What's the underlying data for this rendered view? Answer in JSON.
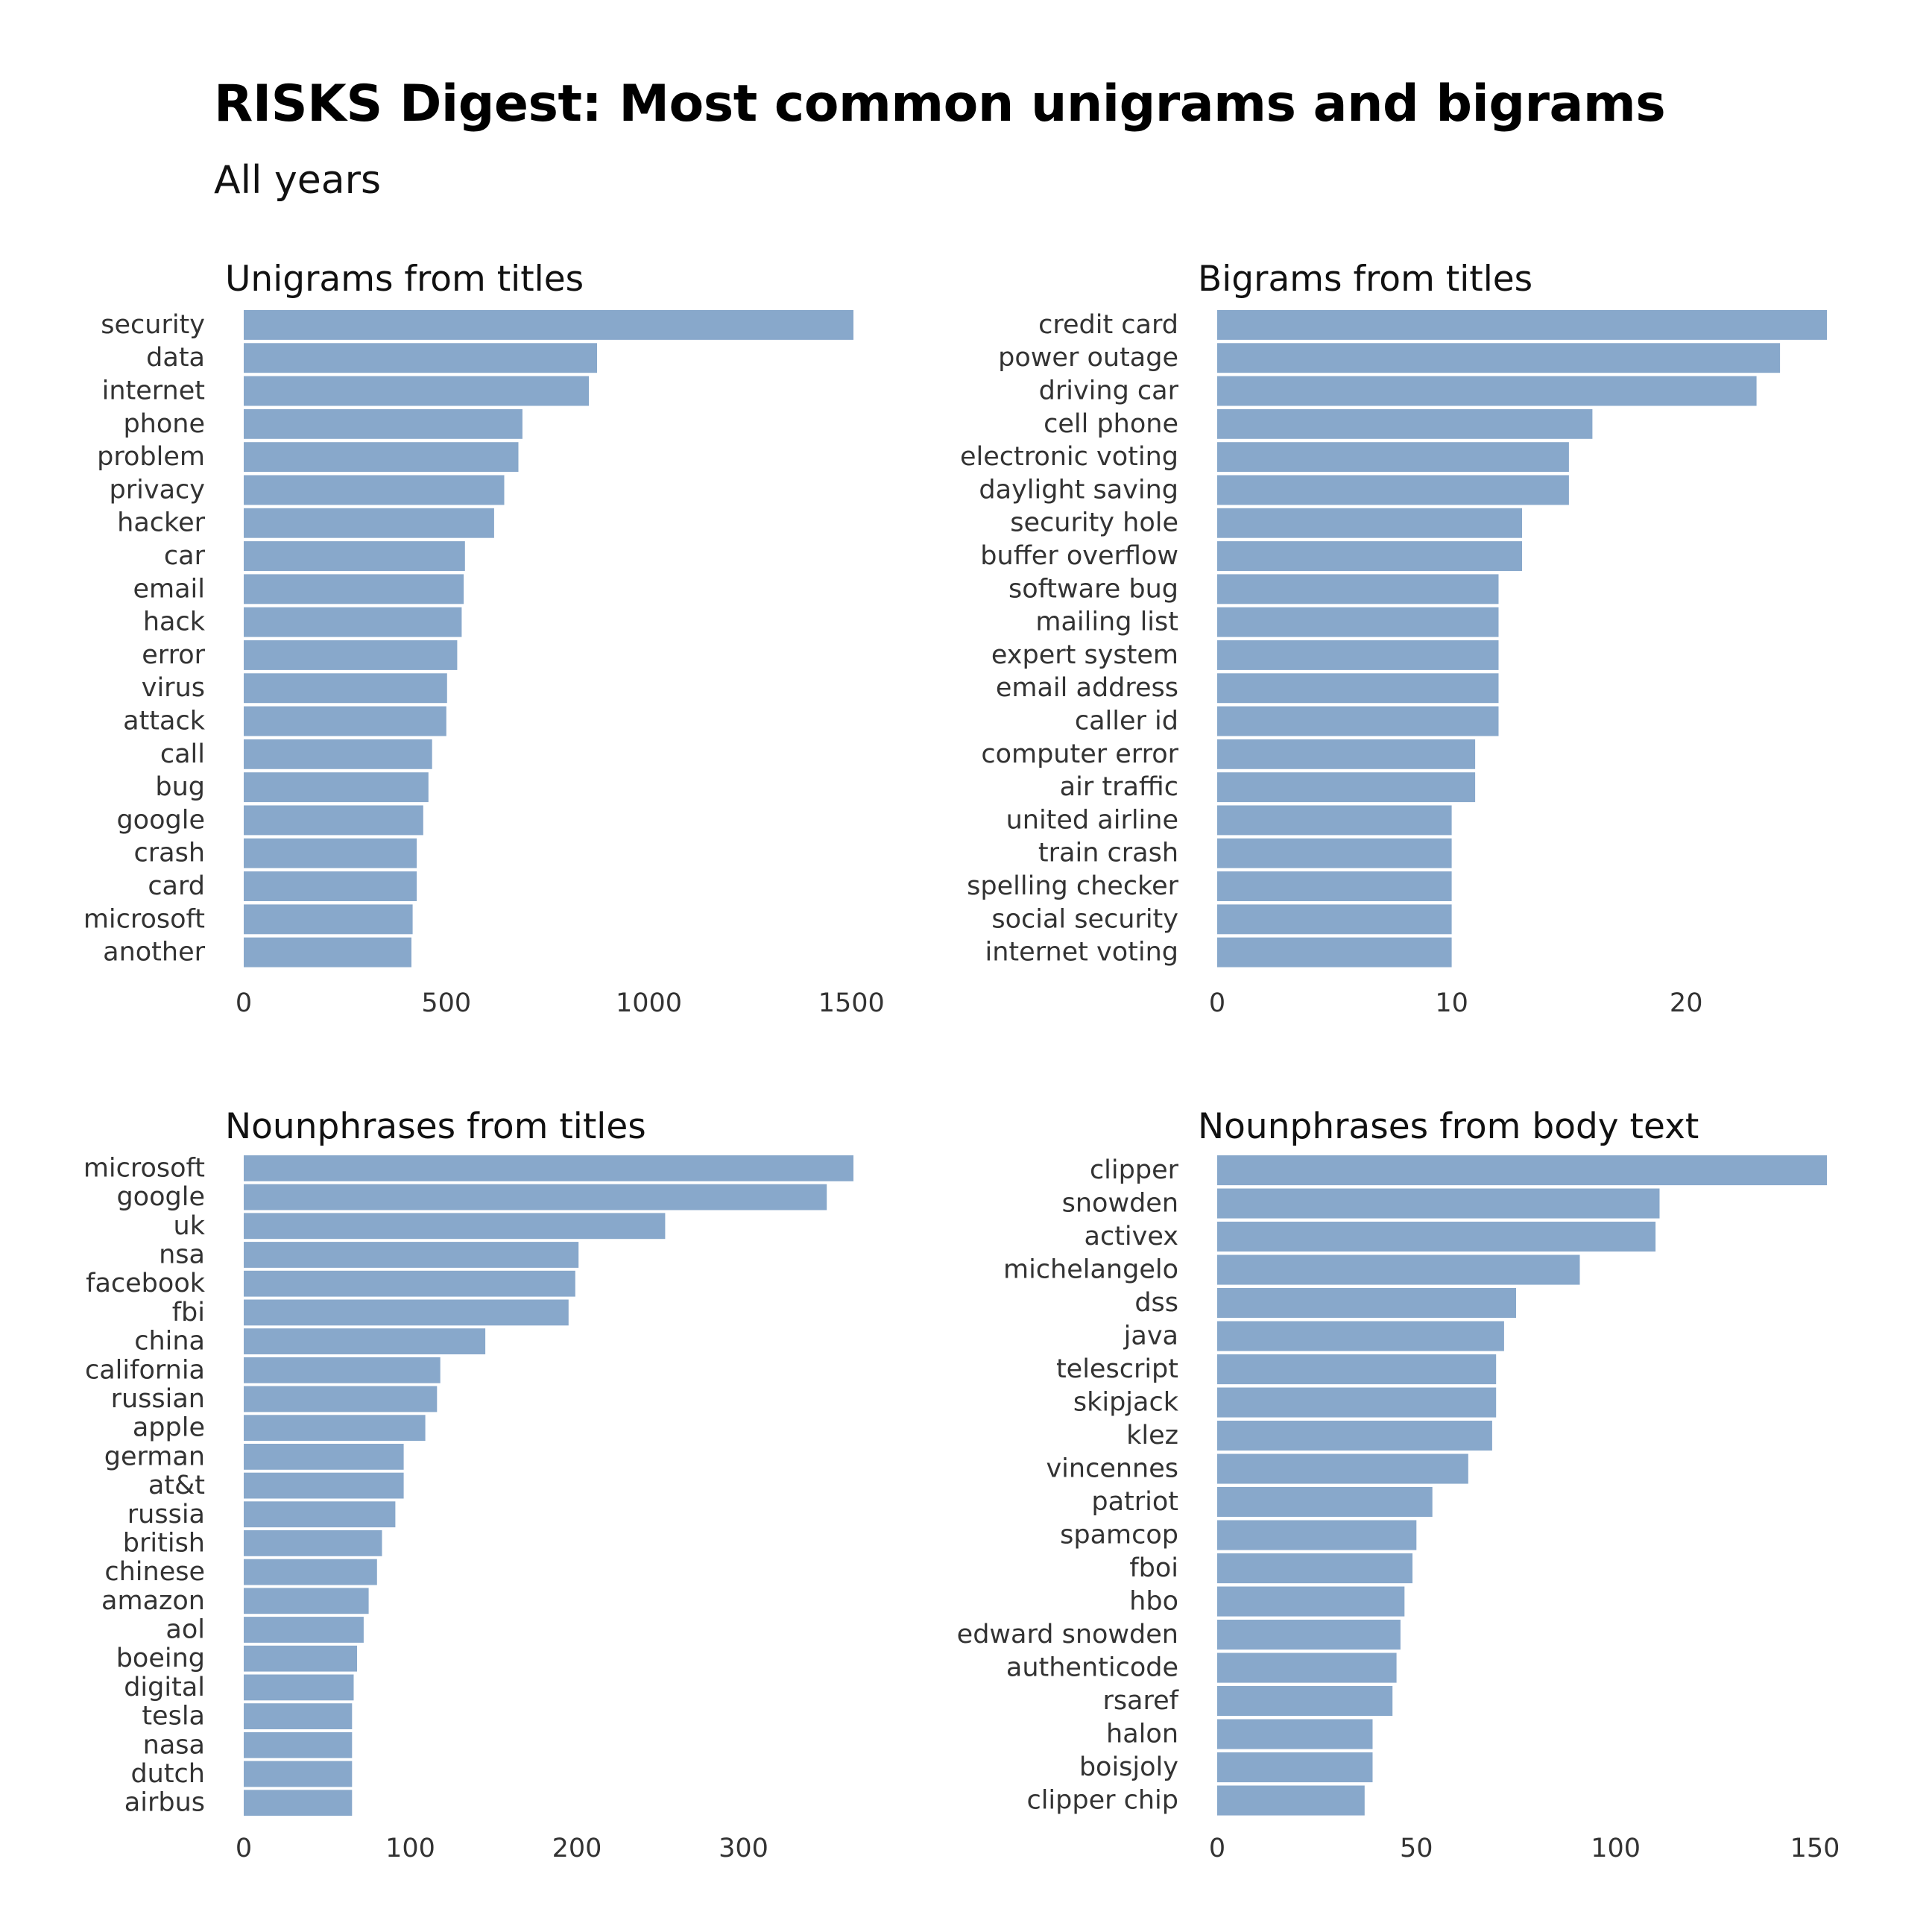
{
  "title": "RISKS Digest: Most common unigrams and bigrams",
  "subtitle": "All years",
  "colors": {
    "bar": "#88A8CB",
    "text": "#333333",
    "title": "#111111"
  },
  "chart_data": [
    {
      "type": "bar",
      "orientation": "horizontal",
      "title": "Unigrams from titles",
      "categories": [
        "security",
        "data",
        "internet",
        "phone",
        "problem",
        "privacy",
        "hacker",
        "car",
        "email",
        "hack",
        "error",
        "virus",
        "attack",
        "call",
        "bug",
        "google",
        "crash",
        "card",
        "microsoft",
        "another"
      ],
      "values": [
        1505,
        872,
        852,
        688,
        678,
        643,
        618,
        546,
        543,
        538,
        527,
        502,
        500,
        465,
        456,
        443,
        427,
        427,
        417,
        414
      ],
      "xticks": [
        0,
        500,
        1000,
        1500
      ],
      "xlim": [
        0,
        1505
      ],
      "grid": false
    },
    {
      "type": "bar",
      "orientation": "horizontal",
      "title": "Bigrams from titles",
      "categories": [
        "credit card",
        "power outage",
        "driving car",
        "cell phone",
        "electronic voting",
        "daylight saving",
        "security hole",
        "buffer overflow",
        "software bug",
        "mailing list",
        "expert system",
        "email address",
        "caller id",
        "computer error",
        "air traffic",
        "united airline",
        "train crash",
        "spelling checker",
        "social security",
        "internet voting"
      ],
      "values": [
        26,
        24,
        23,
        16,
        15,
        15,
        13,
        13,
        12,
        12,
        12,
        12,
        12,
        11,
        11,
        10,
        10,
        10,
        10,
        10
      ],
      "xticks": [
        0,
        10,
        20
      ],
      "xlim": [
        0,
        26
      ],
      "grid": false
    },
    {
      "type": "bar",
      "orientation": "horizontal",
      "title": "Nounphrases from titles",
      "categories": [
        "microsoft",
        "google",
        "uk",
        "nsa",
        "facebook",
        "fbi",
        "china",
        "california",
        "russian",
        "apple",
        "german",
        "at&t",
        "russia",
        "british",
        "chinese",
        "amazon",
        "aol",
        "boeing",
        "digital",
        "tesla",
        "nasa",
        "dutch",
        "airbus"
      ],
      "values": [
        366,
        350,
        253,
        201,
        199,
        195,
        145,
        118,
        116,
        109,
        96,
        96,
        91,
        83,
        80,
        75,
        72,
        68,
        66,
        65,
        65,
        65,
        65
      ],
      "xticks": [
        0,
        100,
        200,
        300
      ],
      "xlim": [
        0,
        366
      ],
      "grid": false
    },
    {
      "type": "bar",
      "orientation": "horizontal",
      "title": "Nounphrases from body text",
      "categories": [
        "clipper",
        "snowden",
        "activex",
        "michelangelo",
        "dss",
        "java",
        "telescript",
        "skipjack",
        "klez",
        "vincennes",
        "patriot",
        "spamcop",
        "fboi",
        "hbo",
        "edward snowden",
        "authenticode",
        "rsaref",
        "halon",
        "boisjoly",
        "clipper chip"
      ],
      "values": [
        153,
        111,
        110,
        91,
        75,
        72,
        70,
        70,
        69,
        63,
        54,
        50,
        49,
        47,
        46,
        45,
        44,
        39,
        39,
        37
      ],
      "xticks": [
        0,
        50,
        100,
        150
      ],
      "xlim": [
        0,
        153
      ],
      "grid": false
    }
  ]
}
